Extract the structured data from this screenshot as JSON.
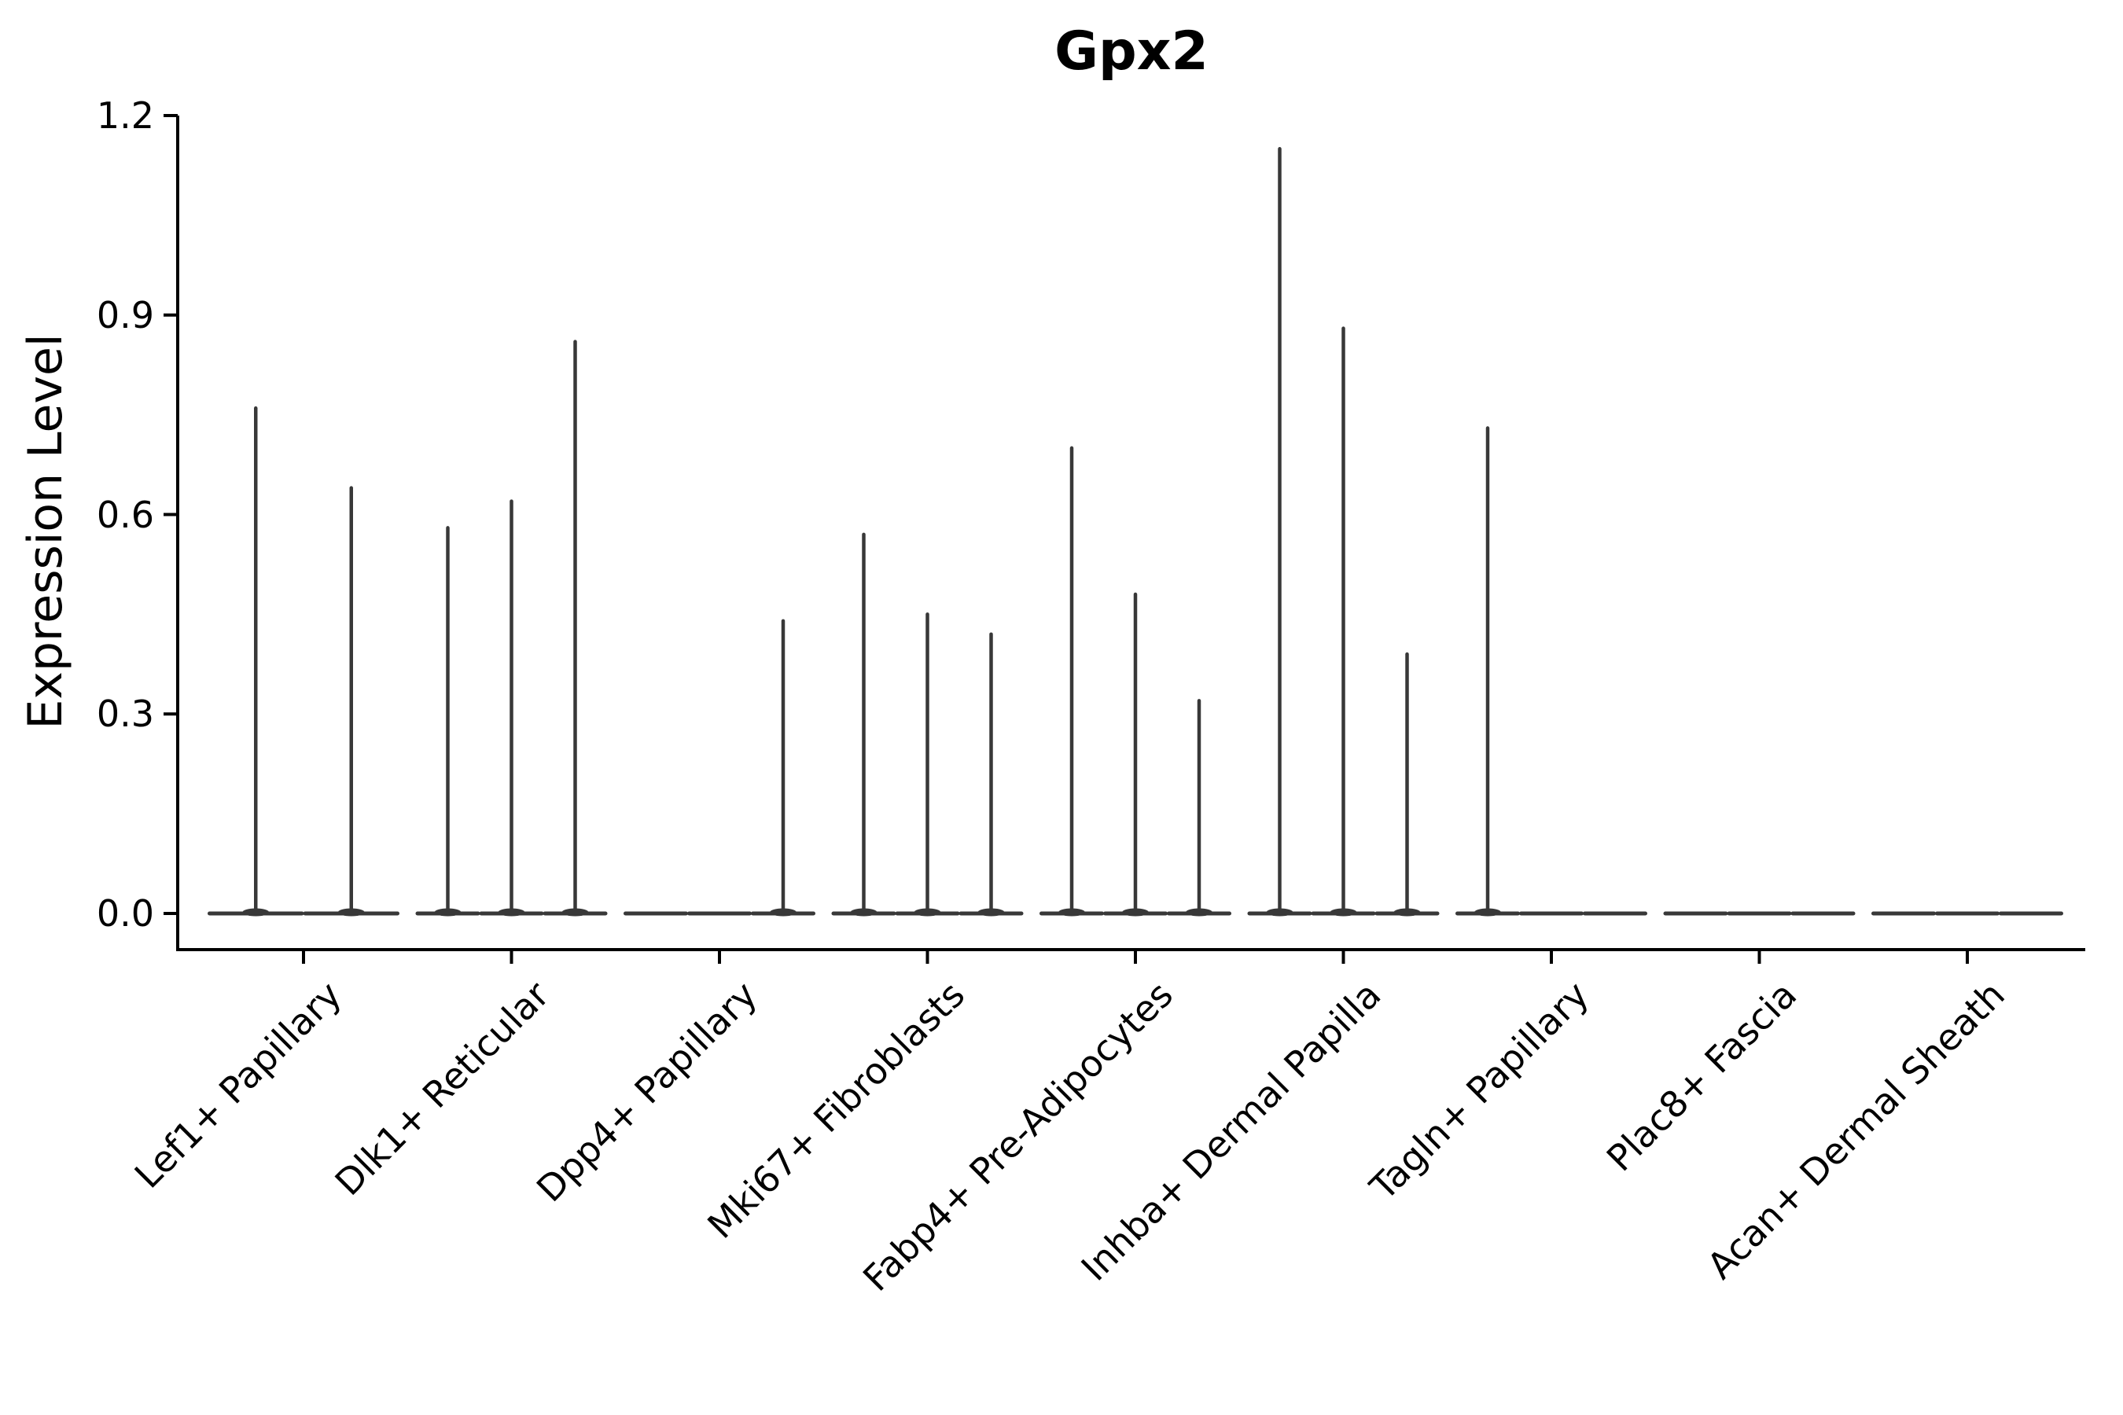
{
  "figure": {
    "background": "#ffffff",
    "axis_color": "#000000",
    "violin_color": "#383838"
  },
  "chart_data": {
    "type": "violin",
    "title": "Gpx2",
    "xlabel": "",
    "ylabel": "Expression Level",
    "ylim": [
      0,
      1.2
    ],
    "yticks": [
      "0.0",
      "0.3",
      "0.6",
      "0.9",
      "1.2"
    ],
    "ytick_values": [
      0,
      0.3,
      0.6,
      0.9,
      1.2
    ],
    "grid": false,
    "legend": null,
    "categories": [
      "Lef1+ Papillary",
      "Dlk1+ Reticular",
      "Dpp4+ Papillary",
      "Mki67+ Fibroblasts",
      "Fabp4+ Pre-Adipocytes",
      "Inhba+ Dermal Papilla",
      "Tagln+ Papillary",
      "Plac8+ Fascia",
      "Acan+ Dermal Sheath"
    ],
    "groups": [
      {
        "label": "Lef1+ Papillary",
        "violin_maxima": [
          0.76,
          0.64
        ]
      },
      {
        "label": "Dlk1+ Reticular",
        "violin_maxima": [
          0.58,
          0.62,
          0.86
        ]
      },
      {
        "label": "Dpp4+ Papillary",
        "violin_maxima": [
          0,
          0,
          0.44
        ]
      },
      {
        "label": "Mki67+ Fibroblasts",
        "violin_maxima": [
          0.57,
          0.45,
          0.42
        ]
      },
      {
        "label": "Fabp4+ Pre-Adipocytes",
        "violin_maxima": [
          0.7,
          0.48,
          0.32
        ]
      },
      {
        "label": "Inhba+ Dermal Papilla",
        "violin_maxima": [
          1.15,
          0.88,
          0.39
        ]
      },
      {
        "label": "Tagln+ Papillary",
        "violin_maxima": [
          0.73,
          0,
          0
        ]
      },
      {
        "label": "Plac8+ Fascia",
        "violin_maxima": [
          0,
          0,
          0
        ]
      },
      {
        "label": "Acan+ Dermal Sheath",
        "violin_maxima": [
          0,
          0,
          0
        ]
      }
    ]
  }
}
